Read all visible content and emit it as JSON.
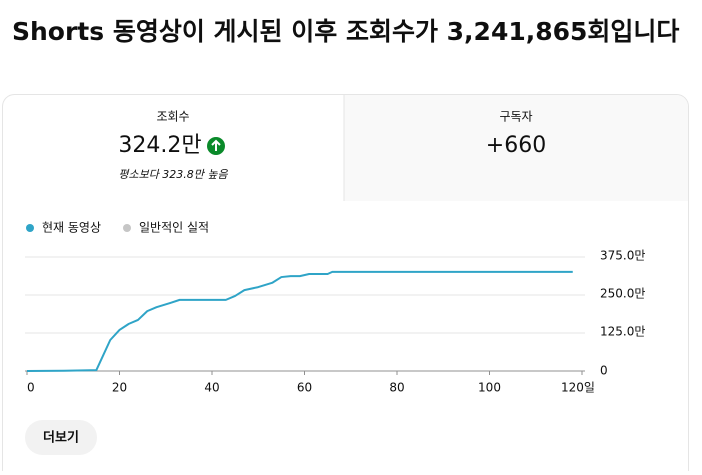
{
  "header": {
    "title": "Shorts 동영상이 게시된 이후 조회수가 3,241,865회입니다"
  },
  "tabs": [
    {
      "label": "조회수",
      "value": "324.2만",
      "note": "평소보다 323.8만 높음"
    },
    {
      "label": "구독자",
      "value": "+660"
    }
  ],
  "chart_data": {
    "type": "line",
    "x": [
      0,
      8,
      15,
      16,
      18,
      20,
      22,
      24,
      26,
      28,
      31,
      33,
      35,
      43,
      45,
      47,
      50,
      53,
      55,
      57,
      59,
      61,
      65,
      66,
      118
    ],
    "series": [
      {
        "name": "현재 동영상",
        "color": "#2fa4c7",
        "values": [
          0,
          1,
          3,
          36,
          102,
          135,
          155,
          168,
          197,
          210,
          224,
          234,
          234,
          234,
          247,
          266,
          276,
          290,
          309,
          312,
          312,
          319,
          319,
          326,
          326
        ]
      }
    ],
    "reference": {
      "name": "일반적인 실적",
      "color": "#c6c6c6"
    },
    "xlim": [
      0,
      120
    ],
    "xticks": [
      0,
      20,
      40,
      60,
      80,
      100,
      {
        "value": 120,
        "label": "120일"
      }
    ],
    "ylim": [
      0,
      375
    ],
    "yticks": [
      {
        "value": 0,
        "label": "0"
      },
      {
        "value": 125,
        "label": "125.0만"
      },
      {
        "value": 250,
        "label": "250.0만"
      },
      {
        "value": 375,
        "label": "375.0만"
      }
    ],
    "grid": true
  },
  "button": {
    "label": "더보기"
  }
}
